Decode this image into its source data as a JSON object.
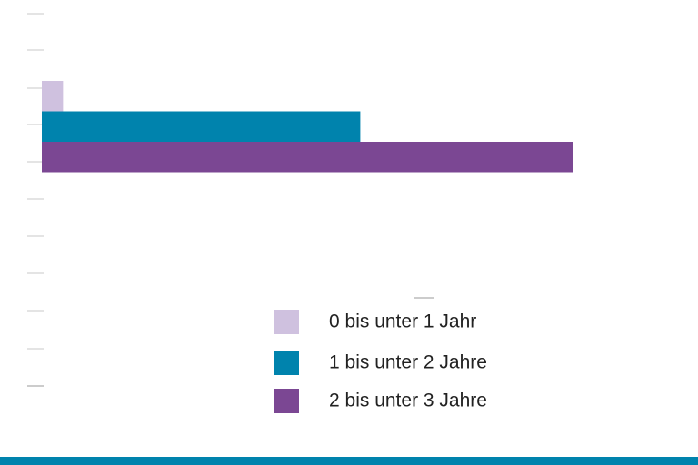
{
  "chart_data": {
    "type": "bar",
    "orientation": "horizontal",
    "categories": [
      null
    ],
    "series": [
      {
        "name": "0 bis unter 1 Jahr",
        "color": "#cfc1df",
        "values": [
          4
        ]
      },
      {
        "name": "1 bis unter 2 Jahre",
        "color": "#0083ad",
        "values": [
          60
        ]
      },
      {
        "name": "2 bis unter 3 Jahre",
        "color": "#7b4793",
        "values": [
          100
        ]
      }
    ],
    "xlim": [
      0,
      100
    ],
    "legend": "bottom-right"
  }
}
